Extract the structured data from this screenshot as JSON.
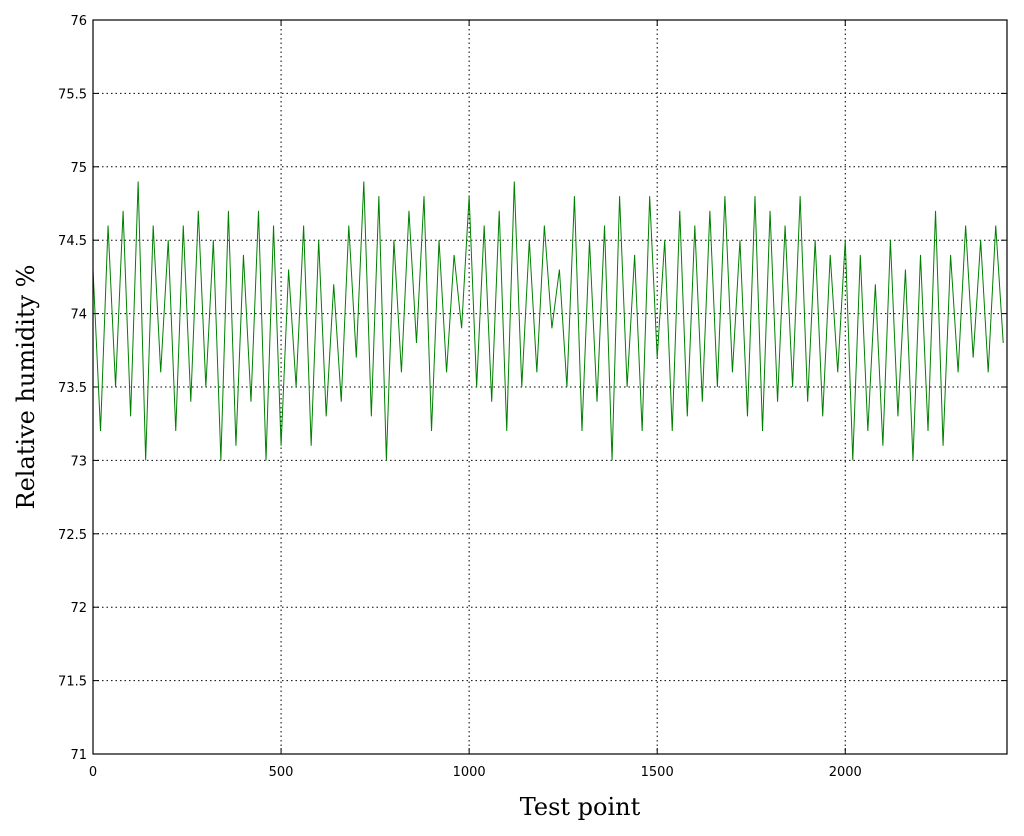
{
  "chart_data": {
    "type": "line",
    "x_label": "Test point",
    "y_label": "Relative humidity %",
    "x": [
      0,
      20,
      40,
      60,
      80,
      100,
      120,
      140,
      160,
      180,
      200,
      220,
      240,
      260,
      280,
      300,
      320,
      340,
      360,
      380,
      400,
      420,
      440,
      460,
      480,
      500,
      520,
      540,
      560,
      580,
      600,
      620,
      640,
      660,
      680,
      700,
      720,
      740,
      760,
      780,
      800,
      820,
      840,
      860,
      880,
      900,
      920,
      940,
      960,
      980,
      1000,
      1020,
      1040,
      1060,
      1080,
      1100,
      1120,
      1140,
      1160,
      1180,
      1200,
      1220,
      1240,
      1260,
      1280,
      1300,
      1320,
      1340,
      1360,
      1380,
      1400,
      1420,
      1440,
      1460,
      1480,
      1500,
      1520,
      1540,
      1560,
      1580,
      1600,
      1620,
      1640,
      1660,
      1680,
      1700,
      1720,
      1740,
      1760,
      1780,
      1800,
      1820,
      1840,
      1860,
      1880,
      1900,
      1920,
      1940,
      1960,
      1980,
      2000,
      2020,
      2040,
      2060,
      2080,
      2100,
      2120,
      2140,
      2160,
      2180,
      2200,
      2220,
      2240,
      2260,
      2280,
      2300,
      2320,
      2340,
      2360,
      2380,
      2400,
      2420
    ],
    "series": [
      {
        "name": "Relative humidity",
        "color": "#008000",
        "values": [
          74.3,
          73.2,
          74.6,
          73.5,
          74.7,
          73.3,
          74.9,
          73.0,
          74.6,
          73.6,
          74.5,
          73.2,
          74.6,
          73.4,
          74.7,
          73.5,
          74.5,
          73.0,
          74.7,
          73.1,
          74.4,
          73.4,
          74.7,
          73.0,
          74.6,
          73.1,
          74.3,
          73.5,
          74.6,
          73.1,
          74.5,
          73.3,
          74.2,
          73.4,
          74.6,
          73.7,
          74.9,
          73.3,
          74.8,
          73.0,
          74.5,
          73.6,
          74.7,
          73.8,
          74.8,
          73.2,
          74.5,
          73.6,
          74.4,
          73.9,
          74.8,
          73.5,
          74.6,
          73.4,
          74.7,
          73.2,
          74.9,
          73.5,
          74.5,
          73.6,
          74.6,
          73.9,
          74.3,
          73.5,
          74.8,
          73.2,
          74.5,
          73.4,
          74.6,
          73.0,
          74.8,
          73.5,
          74.4,
          73.2,
          74.8,
          73.7,
          74.5,
          73.2,
          74.7,
          73.3,
          74.6,
          73.4,
          74.7,
          73.5,
          74.8,
          73.6,
          74.5,
          73.3,
          74.8,
          73.2,
          74.7,
          73.4,
          74.6,
          73.5,
          74.8,
          73.4,
          74.5,
          73.3,
          74.4,
          73.6,
          74.5,
          73.0,
          74.4,
          73.2,
          74.2,
          73.1,
          74.5,
          73.3,
          74.3,
          73.0,
          74.4,
          73.2,
          74.7,
          73.1,
          74.4,
          73.6,
          74.6,
          73.7,
          74.5,
          73.6,
          74.6,
          73.8
        ]
      }
    ],
    "xlim": [
      0,
      2430
    ],
    "ylim": [
      71,
      76
    ],
    "xticks": [
      0,
      500,
      1000,
      1500,
      2000
    ],
    "yticks": [
      71,
      71.5,
      72,
      72.5,
      73,
      73.5,
      74,
      74.5,
      75,
      75.5,
      76
    ],
    "grid": true
  }
}
